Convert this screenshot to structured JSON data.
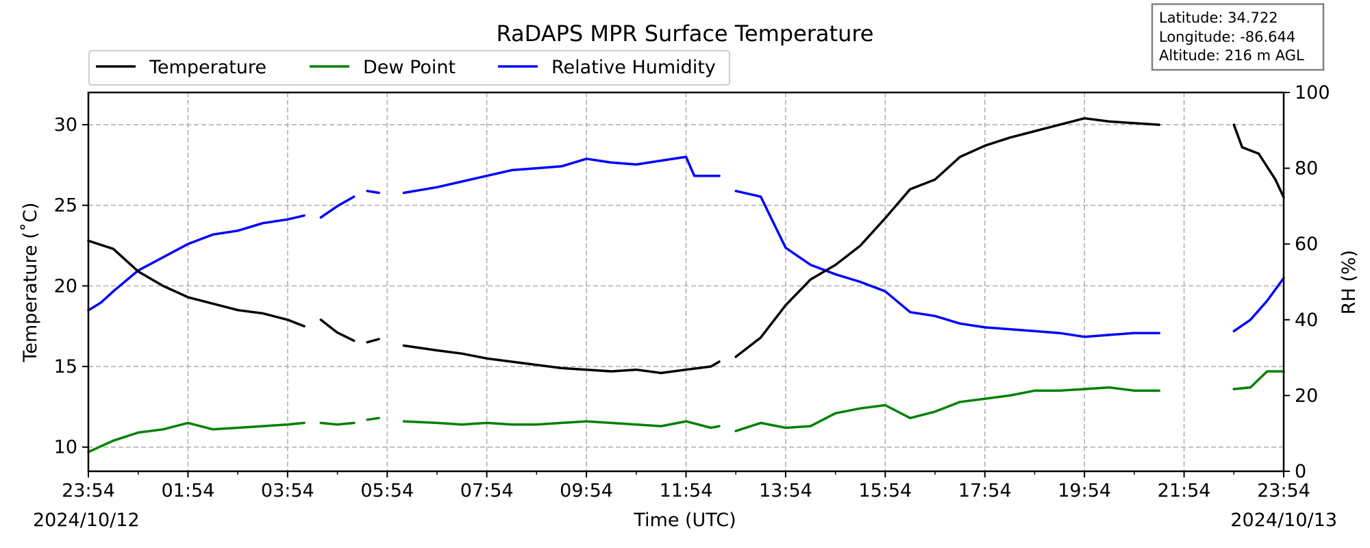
{
  "chart_data": {
    "type": "line",
    "title": "RaDAPS MPR Surface Temperature",
    "xlabel": "Time (UTC)",
    "ylabel_left": "Temperature ($^\\circ$C)",
    "ylabel_left_display": "Temperature (˚C)",
    "ylabel_right": "RH (%)",
    "x_tick_labels": [
      "23:54",
      "01:54",
      "03:54",
      "05:54",
      "07:54",
      "09:54",
      "11:54",
      "13:54",
      "15:54",
      "17:54",
      "19:54",
      "21:54",
      "23:54"
    ],
    "x_date_start": "2024/10/12",
    "x_date_end": "2024/10/13",
    "xlim": [
      "2024-10-12 23:54",
      "2024-10-13 23:54"
    ],
    "ylim_left": [
      8.5,
      32
    ],
    "ylim_right": [
      0,
      100
    ],
    "y_left_ticks": [
      10,
      15,
      20,
      25,
      30
    ],
    "y_right_ticks": [
      0,
      20,
      40,
      60,
      80,
      100
    ],
    "grid": true,
    "legend_position": "upper-left, above plot",
    "info_box": [
      "Latitude: 34.722",
      "Longitude: -86.644",
      "Altitude: 216 m AGL"
    ],
    "series": [
      {
        "name": "Temperature",
        "axis": "left",
        "color": "#000000",
        "segments": [
          {
            "x": [
              "2024-10-12 23:54",
              "2024-10-13 00:24",
              "2024-10-13 00:54",
              "2024-10-13 01:24",
              "2024-10-13 01:54",
              "2024-10-13 02:24",
              "2024-10-13 02:54",
              "2024-10-13 03:24",
              "2024-10-13 03:54",
              "2024-10-13 04:14"
            ],
            "y": [
              22.8,
              22.3,
              20.9,
              20.0,
              19.3,
              18.9,
              18.5,
              18.3,
              17.9,
              17.5
            ]
          },
          {
            "x": [
              "2024-10-13 04:34",
              "2024-10-13 04:54",
              "2024-10-13 05:14"
            ],
            "y": [
              17.9,
              17.1,
              16.6
            ]
          },
          {
            "x": [
              "2024-10-13 05:30",
              "2024-10-13 05:44"
            ],
            "y": [
              16.5,
              16.7
            ]
          },
          {
            "x": [
              "2024-10-13 06:14",
              "2024-10-13 06:54",
              "2024-10-13 07:24",
              "2024-10-13 07:54",
              "2024-10-13 08:24",
              "2024-10-13 08:54",
              "2024-10-13 09:24",
              "2024-10-13 09:54",
              "2024-10-13 10:24",
              "2024-10-13 10:54",
              "2024-10-13 11:24",
              "2024-10-13 11:54",
              "2024-10-13 12:24",
              "2024-10-13 12:34"
            ],
            "y": [
              16.3,
              16.0,
              15.8,
              15.5,
              15.3,
              15.1,
              14.9,
              14.8,
              14.7,
              14.8,
              14.6,
              14.8,
              15.0,
              15.3
            ]
          },
          {
            "x": [
              "2024-10-13 12:54",
              "2024-10-13 13:24",
              "2024-10-13 13:54",
              "2024-10-13 14:24",
              "2024-10-13 14:54",
              "2024-10-13 15:24",
              "2024-10-13 15:54",
              "2024-10-13 16:24",
              "2024-10-13 16:54",
              "2024-10-13 17:24",
              "2024-10-13 17:54",
              "2024-10-13 18:24",
              "2024-10-13 18:54",
              "2024-10-13 19:24",
              "2024-10-13 19:54",
              "2024-10-13 20:24",
              "2024-10-13 20:54",
              "2024-10-13 21:24"
            ],
            "y": [
              15.6,
              16.8,
              18.8,
              20.4,
              21.3,
              22.5,
              24.2,
              26.0,
              26.6,
              28.0,
              28.7,
              29.2,
              29.6,
              30.0,
              30.4,
              30.2,
              30.1,
              30.0
            ]
          },
          {
            "x": [
              "2024-10-13 22:54",
              "2024-10-13 23:04",
              "2024-10-13 23:24",
              "2024-10-13 23:44",
              "2024-10-13 23:54"
            ],
            "y": [
              30.0,
              28.6,
              28.2,
              26.6,
              25.5
            ]
          }
        ]
      },
      {
        "name": "Dew Point",
        "axis": "left",
        "color": "#008000",
        "segments": [
          {
            "x": [
              "2024-10-12 23:54",
              "2024-10-13 00:24",
              "2024-10-13 00:54",
              "2024-10-13 01:24",
              "2024-10-13 01:54",
              "2024-10-13 02:24",
              "2024-10-13 02:54",
              "2024-10-13 03:24",
              "2024-10-13 03:54",
              "2024-10-13 04:14"
            ],
            "y": [
              9.7,
              10.4,
              10.9,
              11.1,
              11.5,
              11.1,
              11.2,
              11.3,
              11.4,
              11.5
            ]
          },
          {
            "x": [
              "2024-10-13 04:34",
              "2024-10-13 04:54",
              "2024-10-13 05:14"
            ],
            "y": [
              11.5,
              11.4,
              11.5
            ]
          },
          {
            "x": [
              "2024-10-13 05:30",
              "2024-10-13 05:44"
            ],
            "y": [
              11.7,
              11.8
            ]
          },
          {
            "x": [
              "2024-10-13 06:14",
              "2024-10-13 06:54",
              "2024-10-13 07:24",
              "2024-10-13 07:54",
              "2024-10-13 08:24",
              "2024-10-13 08:54",
              "2024-10-13 09:24",
              "2024-10-13 09:54",
              "2024-10-13 10:24",
              "2024-10-13 10:54",
              "2024-10-13 11:24",
              "2024-10-13 11:54",
              "2024-10-13 12:24",
              "2024-10-13 12:34"
            ],
            "y": [
              11.6,
              11.5,
              11.4,
              11.5,
              11.4,
              11.4,
              11.5,
              11.6,
              11.5,
              11.4,
              11.3,
              11.6,
              11.2,
              11.3
            ]
          },
          {
            "x": [
              "2024-10-13 12:54",
              "2024-10-13 13:24",
              "2024-10-13 13:54",
              "2024-10-13 14:24",
              "2024-10-13 14:54",
              "2024-10-13 15:24",
              "2024-10-13 15:54",
              "2024-10-13 16:24",
              "2024-10-13 16:54",
              "2024-10-13 17:24",
              "2024-10-13 17:54",
              "2024-10-13 18:24",
              "2024-10-13 18:54",
              "2024-10-13 19:24",
              "2024-10-13 19:54",
              "2024-10-13 20:24",
              "2024-10-13 20:54",
              "2024-10-13 21:24"
            ],
            "y": [
              11.0,
              11.5,
              11.2,
              11.3,
              12.1,
              12.4,
              12.6,
              11.8,
              12.2,
              12.8,
              13.0,
              13.2,
              13.5,
              13.5,
              13.6,
              13.7,
              13.5,
              13.5
            ]
          },
          {
            "x": [
              "2024-10-13 22:54",
              "2024-10-13 23:14",
              "2024-10-13 23:34",
              "2024-10-13 23:54"
            ],
            "y": [
              13.6,
              13.7,
              14.7,
              14.7
            ]
          }
        ]
      },
      {
        "name": "Relative Humidity",
        "axis": "right",
        "color": "#0000ff",
        "segments": [
          {
            "x": [
              "2024-10-12 23:54",
              "2024-10-13 00:09",
              "2024-10-13 00:24",
              "2024-10-13 00:54",
              "2024-10-13 01:24",
              "2024-10-13 01:54",
              "2024-10-13 02:24",
              "2024-10-13 02:54",
              "2024-10-13 03:24",
              "2024-10-13 03:54",
              "2024-10-13 04:14"
            ],
            "y": [
              42.5,
              44.5,
              47.5,
              53.0,
              56.5,
              60.0,
              62.5,
              63.5,
              65.5,
              66.5,
              67.5
            ]
          },
          {
            "x": [
              "2024-10-13 04:34",
              "2024-10-13 04:54",
              "2024-10-13 05:14"
            ],
            "y": [
              67.0,
              70.0,
              72.5
            ]
          },
          {
            "x": [
              "2024-10-13 05:30",
              "2024-10-13 05:44"
            ],
            "y": [
              74.0,
              73.5
            ]
          },
          {
            "x": [
              "2024-10-13 06:14",
              "2024-10-13 06:54",
              "2024-10-13 07:24",
              "2024-10-13 07:54",
              "2024-10-13 08:24",
              "2024-10-13 08:54",
              "2024-10-13 09:24",
              "2024-10-13 09:54",
              "2024-10-13 10:24",
              "2024-10-13 10:54",
              "2024-10-13 11:24",
              "2024-10-13 11:54",
              "2024-10-13 12:04",
              "2024-10-13 12:34"
            ],
            "y": [
              73.5,
              75.0,
              76.5,
              78.0,
              79.5,
              80.0,
              80.5,
              82.5,
              81.5,
              81.0,
              82.0,
              83.0,
              78.0,
              78.0
            ]
          },
          {
            "x": [
              "2024-10-13 12:54",
              "2024-10-13 13:24",
              "2024-10-13 13:54",
              "2024-10-13 14:24",
              "2024-10-13 14:54",
              "2024-10-13 15:24",
              "2024-10-13 15:54",
              "2024-10-13 16:24",
              "2024-10-13 16:54",
              "2024-10-13 17:24",
              "2024-10-13 17:54",
              "2024-10-13 18:24",
              "2024-10-13 18:54",
              "2024-10-13 19:24",
              "2024-10-13 19:54",
              "2024-10-13 20:24",
              "2024-10-13 20:54",
              "2024-10-13 21:24"
            ],
            "y": [
              74.0,
              72.5,
              59.0,
              54.5,
              52.0,
              50.0,
              47.5,
              42.0,
              41.0,
              39.0,
              38.0,
              37.5,
              37.0,
              36.5,
              35.5,
              36.0,
              36.5,
              36.5
            ]
          },
          {
            "x": [
              "2024-10-13 22:54",
              "2024-10-13 23:14",
              "2024-10-13 23:34",
              "2024-10-13 23:54"
            ],
            "y": [
              37.0,
              40.0,
              45.0,
              51.0
            ]
          }
        ]
      }
    ]
  }
}
